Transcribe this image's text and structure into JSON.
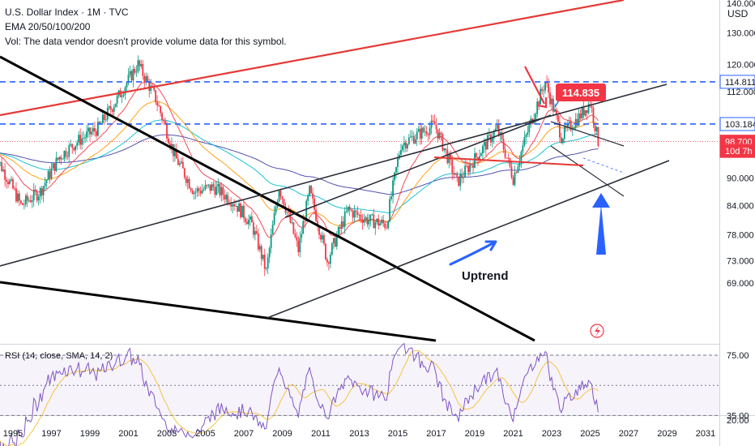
{
  "header": {
    "symbol_line": "U.S. Dollar Index · 1M · TVC",
    "ema_line": "EMA 20/50/100/200",
    "vol_line": "Vol: The data vendor doesn't provide volume data for this symbol."
  },
  "currency_label": "USD",
  "price_axis": {
    "ticks": [
      {
        "label": "140.000",
        "value": 140
      },
      {
        "label": "130.000",
        "value": 130
      },
      {
        "label": "120.000",
        "value": 120
      },
      {
        "label": "112.000",
        "value": 112
      },
      {
        "label": "90.000",
        "value": 90
      },
      {
        "label": "84.000",
        "value": 84
      },
      {
        "label": "78.000",
        "value": 78
      },
      {
        "label": "73.000",
        "value": 73
      },
      {
        "label": "69.000",
        "value": 69
      }
    ],
    "tags": [
      {
        "label": "114.811",
        "value": 114.811,
        "bg": "#ffffff",
        "fg": "#131722",
        "border": "#2962ff"
      },
      {
        "label": "103.184",
        "value": 103.184,
        "bg": "#ffffff",
        "fg": "#131722",
        "border": "#2962ff"
      },
      {
        "label": "98.700",
        "value": 98.7,
        "bg": "#f23645",
        "fg": "#ffffff",
        "border": "#f23645"
      },
      {
        "label": "10d 7h",
        "value": 96.4,
        "bg": "#f23645",
        "fg": "#ffffff",
        "border": "#f23645"
      }
    ]
  },
  "rsi_axis": {
    "ticks": [
      {
        "label": "75.00",
        "value": 75
      },
      {
        "label": "35.00",
        "value": 35
      },
      {
        "label": "20.00",
        "value": 20
      }
    ]
  },
  "rsi_label": "RSI (14, close, SMA, 14, 2)",
  "time_axis": [
    "1995",
    "1997",
    "1999",
    "2001",
    "2003",
    "2005",
    "2007",
    "2009",
    "2011",
    "2013",
    "2015",
    "2017",
    "2019",
    "2021",
    "2023",
    "2025",
    "2027",
    "2029",
    "2031"
  ],
  "annotations": {
    "peak_label": "114.835",
    "uptrend_label": "Uptrend"
  },
  "colors": {
    "up": "#089981",
    "down": "#f23645",
    "ema20": "#f23645",
    "ema50": "#ff9800",
    "ema100": "#00bcd4",
    "ema200": "#3f3fa8",
    "rsi": "#7e57c2",
    "rsi_ma": "#f5c542",
    "level": "#2962ff",
    "trend_red": "#e53935",
    "trend_black": "#000000"
  },
  "chart_data": {
    "type": "candlestick",
    "symbol": "U.S. Dollar Index",
    "interval": "1M",
    "source": "TVC",
    "horizontal_levels": [
      114.811,
      103.184
    ],
    "last_price": 98.7,
    "close_path": [
      [
        "1994-01",
        96.0
      ],
      [
        "1995-06",
        84.0
      ],
      [
        "1996-06",
        87.0
      ],
      [
        "1997-06",
        95.0
      ],
      [
        "1998-06",
        99.0
      ],
      [
        "1999-06",
        102.0
      ],
      [
        "2000-06",
        110.0
      ],
      [
        "2001-07",
        120.0
      ],
      [
        "2002-06",
        110.0
      ],
      [
        "2003-06",
        95.0
      ],
      [
        "2004-06",
        87.0
      ],
      [
        "2005-06",
        88.0
      ],
      [
        "2006-06",
        85.0
      ],
      [
        "2007-06",
        80.0
      ],
      [
        "2008-03",
        71.0
      ],
      [
        "2008-11",
        88.0
      ],
      [
        "2009-11",
        75.0
      ],
      [
        "2010-06",
        87.0
      ],
      [
        "2011-05",
        73.0
      ],
      [
        "2012-06",
        83.0
      ],
      [
        "2013-06",
        81.0
      ],
      [
        "2014-06",
        80.0
      ],
      [
        "2015-03",
        98.0
      ],
      [
        "2016-12",
        103.0
      ],
      [
        "2018-02",
        89.0
      ],
      [
        "2019-06",
        97.0
      ],
      [
        "2020-03",
        102.0
      ],
      [
        "2021-01",
        90.0
      ],
      [
        "2022-09",
        114.8
      ],
      [
        "2023-07",
        100.0
      ],
      [
        "2024-06",
        105.0
      ],
      [
        "2025-01",
        109.0
      ],
      [
        "2025-06",
        98.7
      ]
    ]
  }
}
